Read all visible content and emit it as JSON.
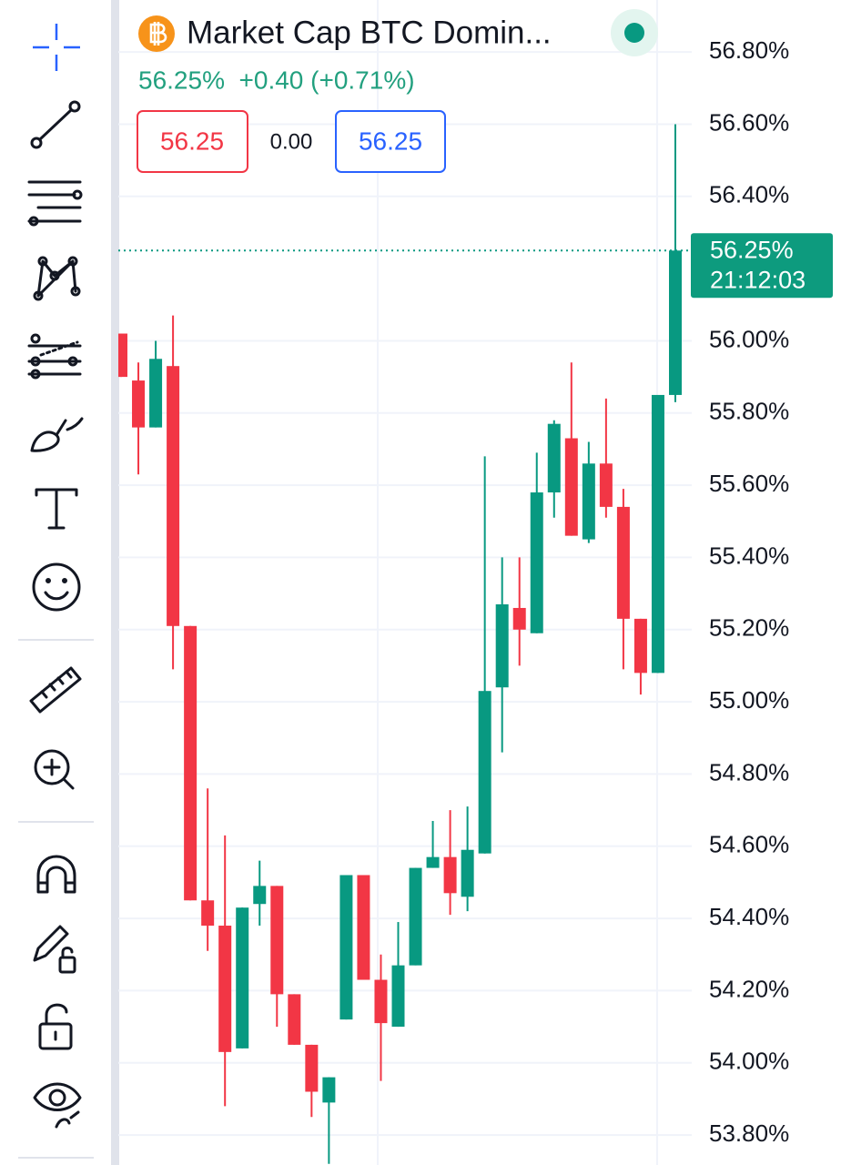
{
  "chart_data": {
    "type": "candlestick",
    "title": "Market Cap BTC Domin...",
    "quote_line": "56.25%  +0.40 (+0.71%)",
    "sell_price": "56.25",
    "spread": "0.00",
    "buy_price": "56.25",
    "price_label": "56.25%",
    "countdown": "21:12:03",
    "up_color": "#089981",
    "down_color": "#f23645",
    "grid": true,
    "ylim": [
      53.717,
      56.944
    ],
    "yticks": [
      {
        "value": 56.8,
        "label": "56.80%"
      },
      {
        "value": 56.6,
        "label": "56.60%"
      },
      {
        "value": 56.4,
        "label": "56.40%"
      },
      {
        "value": 56.0,
        "label": "56.00%"
      },
      {
        "value": 55.8,
        "label": "55.80%"
      },
      {
        "value": 55.6,
        "label": "55.60%"
      },
      {
        "value": 55.4,
        "label": "55.40%"
      },
      {
        "value": 55.2,
        "label": "55.20%"
      },
      {
        "value": 55.0,
        "label": "55.00%"
      },
      {
        "value": 54.8,
        "label": "54.80%"
      },
      {
        "value": 54.6,
        "label": "54.60%"
      },
      {
        "value": 54.4,
        "label": "54.40%"
      },
      {
        "value": 54.2,
        "label": "54.20%"
      },
      {
        "value": 54.0,
        "label": "54.00%"
      },
      {
        "value": 53.8,
        "label": "53.80%"
      }
    ],
    "open": [
      56.02,
      55.89,
      55.76,
      55.93,
      55.21,
      54.45,
      54.38,
      54.04,
      54.44,
      54.49,
      54.19,
      54.05,
      53.89,
      54.12,
      54.52,
      54.23,
      54.1,
      54.27,
      54.54,
      54.57,
      54.46,
      54.58,
      55.04,
      55.26,
      55.19,
      55.58,
      55.73,
      55.45,
      55.66,
      55.54,
      55.23,
      55.08,
      55.85
    ],
    "high": [
      56.02,
      55.94,
      56.0,
      56.07,
      55.21,
      54.76,
      54.63,
      54.43,
      54.56,
      54.49,
      54.19,
      54.05,
      53.96,
      54.52,
      54.52,
      54.3,
      54.39,
      54.54,
      54.67,
      54.7,
      54.71,
      55.68,
      55.4,
      55.4,
      55.69,
      55.78,
      55.94,
      55.72,
      55.84,
      55.59,
      55.23,
      55.85,
      56.6
    ],
    "low": [
      55.9,
      55.63,
      55.76,
      55.09,
      54.45,
      54.31,
      53.88,
      54.04,
      54.38,
      54.1,
      54.05,
      53.85,
      53.72,
      54.12,
      54.23,
      53.95,
      54.1,
      54.27,
      54.54,
      54.41,
      54.42,
      54.58,
      54.86,
      55.1,
      55.19,
      55.51,
      55.46,
      55.44,
      55.51,
      55.09,
      55.02,
      55.08,
      55.83
    ],
    "close": [
      55.9,
      55.76,
      55.95,
      55.21,
      54.45,
      54.38,
      54.03,
      54.43,
      54.49,
      54.19,
      54.05,
      53.92,
      53.96,
      54.52,
      54.23,
      54.11,
      54.27,
      54.54,
      54.57,
      54.47,
      54.59,
      55.03,
      55.27,
      55.2,
      55.58,
      55.77,
      55.46,
      55.66,
      55.54,
      55.23,
      55.08,
      55.85,
      56.25
    ]
  }
}
